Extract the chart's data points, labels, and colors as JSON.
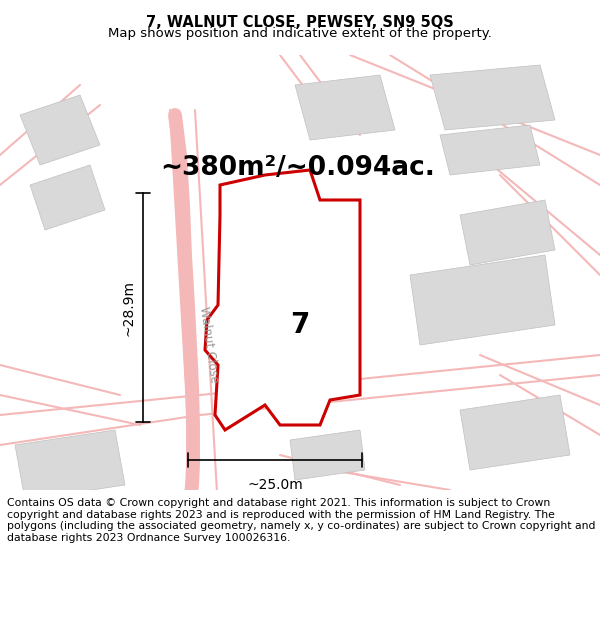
{
  "title_line1": "7, WALNUT CLOSE, PEWSEY, SN9 5QS",
  "title_line2": "Map shows position and indicative extent of the property.",
  "area_text": "~380m²/~0.094ac.",
  "width_text": "~25.0m",
  "height_text": "~28.9m",
  "road_label": "Walnut Close",
  "plot_number": "7",
  "footer_text": "Contains OS data © Crown copyright and database right 2021. This information is subject to Crown copyright and database rights 2023 and is reproduced with the permission of HM Land Registry. The polygons (including the associated geometry, namely x, y co-ordinates) are subject to Crown copyright and database rights 2023 Ordnance Survey 100026316.",
  "bg_color": "#ffffff",
  "map_bg_color": "#ffffff",
  "road_color": "#f5b8b8",
  "building_color": "#d9d9d9",
  "building_edge_color": "#c0c0c0",
  "plot_fill_color": "#ffffff",
  "plot_edge_color": "#cc0000",
  "plot_edge_width": 2.2,
  "dim_line_color": "#000000",
  "text_color": "#000000",
  "title_fontsize": 10.5,
  "subtitle_fontsize": 9.5,
  "area_fontsize": 19,
  "dim_fontsize": 10,
  "plot_num_fontsize": 20,
  "road_label_fontsize": 8.5,
  "footer_fontsize": 7.8
}
